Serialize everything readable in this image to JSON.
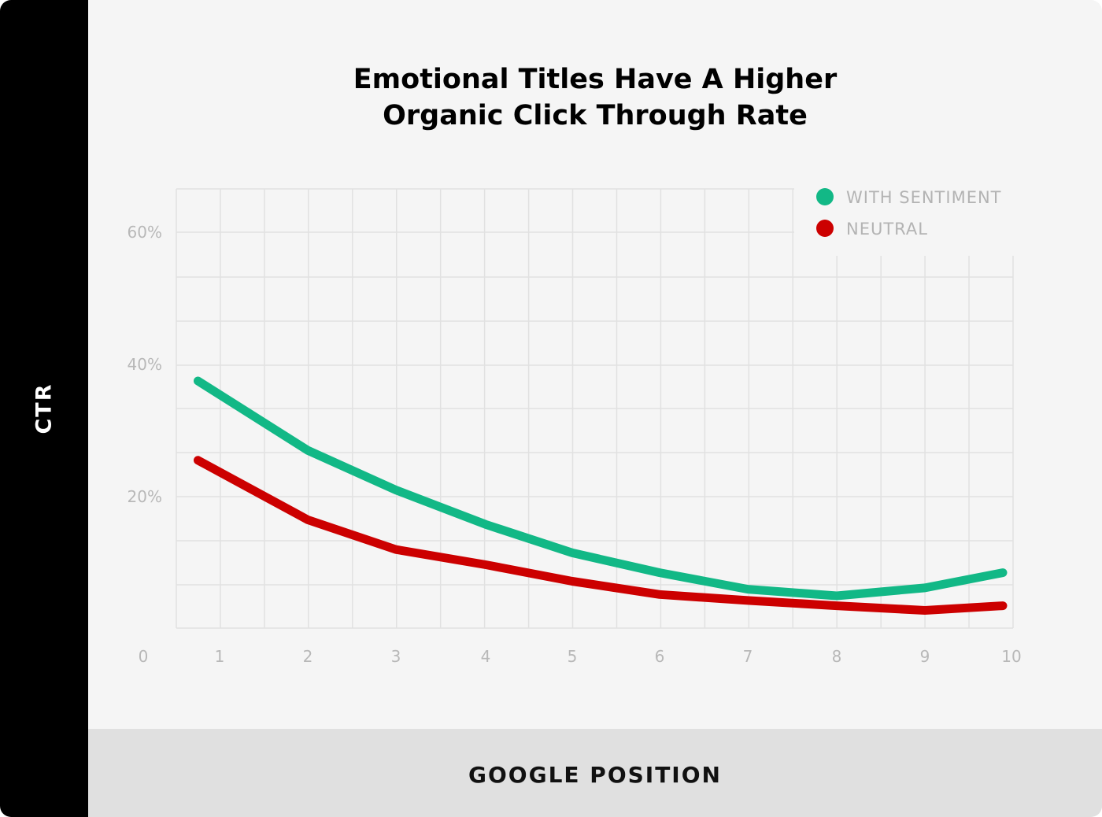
{
  "chart_data": {
    "type": "line",
    "title": [
      "Emotional Titles Have A Higher",
      "Organic Click Through Rate"
    ],
    "xlabel": "GOOGLE POSITION",
    "ylabel": "CTR",
    "x_ticks": [
      "0",
      "1",
      "2",
      "3",
      "4",
      "5",
      "6",
      "7",
      "8",
      "9",
      "10"
    ],
    "y_ticks": [
      "20%",
      "40%",
      "60%"
    ],
    "y_tick_values": [
      20,
      40,
      60
    ],
    "xlim": [
      0,
      10
    ],
    "ylim": [
      0,
      67
    ],
    "grid": true,
    "legend_position": "top-right",
    "series": [
      {
        "name": "WITH SENTIMENT",
        "color": "#12b886",
        "x": [
          0.5,
          2,
          3,
          4,
          5,
          6,
          7,
          8,
          9,
          9.9
        ],
        "y": [
          37.5,
          27,
          21,
          15.8,
          11.5,
          8.5,
          6,
          5,
          6.2,
          8.5
        ]
      },
      {
        "name": "NEUTRAL",
        "color": "#cc0000",
        "x": [
          0.5,
          2,
          3,
          4,
          5,
          6,
          7,
          8,
          9,
          9.9
        ],
        "y": [
          25.5,
          16.5,
          12,
          9.7,
          7.2,
          5.2,
          4.3,
          3.5,
          2.8,
          3.5
        ]
      }
    ]
  }
}
